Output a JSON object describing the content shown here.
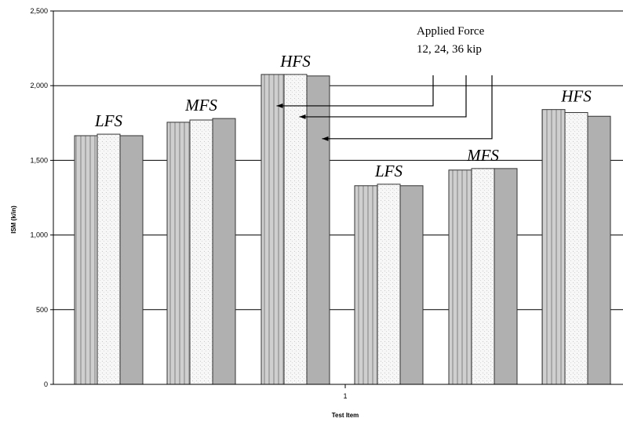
{
  "chart_data": {
    "type": "bar",
    "title": "",
    "xlabel": "Test Item",
    "ylabel": "ISM (k/in)",
    "x_tick": "1",
    "ylim": [
      0,
      2500
    ],
    "yticks": [
      "0",
      "500",
      "1,000",
      "1,500",
      "2,000",
      "2,500"
    ],
    "grid": true,
    "bar_colors": [
      "#c4c4c4",
      "#f4f4f4",
      "#b0b0b0"
    ],
    "groups": [
      {
        "label": "LFS",
        "values": [
          1665,
          1675,
          1665
        ]
      },
      {
        "label": "MFS",
        "values": [
          1755,
          1770,
          1780
        ]
      },
      {
        "label": "HFS",
        "values": [
          2075,
          2075,
          2065
        ]
      },
      {
        "label": "LFS",
        "values": [
          1330,
          1340,
          1330
        ]
      },
      {
        "label": "MFS",
        "values": [
          1435,
          1445,
          1445
        ]
      },
      {
        "label": "HFS",
        "values": [
          1840,
          1820,
          1795
        ]
      }
    ],
    "annotation": {
      "line1": "Applied Force",
      "line2": "12, 24, 36 kip"
    }
  }
}
